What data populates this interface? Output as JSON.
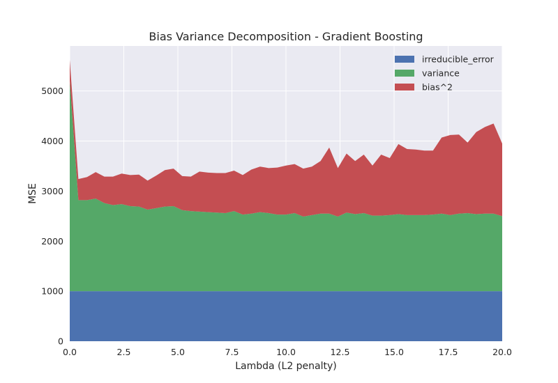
{
  "chart_data": {
    "type": "area",
    "stacked": true,
    "title": "Bias Variance Decomposition - Gradient Boosting",
    "xlabel": "Lambda (L2 penalty)",
    "ylabel": "MSE",
    "xlim": [
      0,
      20
    ],
    "ylim": [
      0,
      5900
    ],
    "xticks": [
      0,
      2.5,
      5,
      7.5,
      10,
      12.5,
      15,
      17.5,
      20
    ],
    "xtick_labels": [
      "0.0",
      "2.5",
      "5.0",
      "7.5",
      "10.0",
      "12.5",
      "15.0",
      "17.5",
      "20.0"
    ],
    "yticks": [
      0,
      1000,
      2000,
      3000,
      4000,
      5000
    ],
    "ytick_labels": [
      "0",
      "1000",
      "2000",
      "3000",
      "4000",
      "5000"
    ],
    "grid": true,
    "legend_position": "top-right",
    "x": [
      0,
      0.4,
      0.8,
      1.2,
      1.6,
      2.0,
      2.4,
      2.8,
      3.2,
      3.6,
      4.0,
      4.4,
      4.8,
      5.2,
      5.6,
      6.0,
      6.4,
      6.8,
      7.2,
      7.6,
      8.0,
      8.4,
      8.8,
      9.2,
      9.6,
      10.0,
      10.4,
      10.8,
      11.2,
      11.6,
      12.0,
      12.4,
      12.8,
      13.2,
      13.6,
      14.0,
      14.4,
      14.8,
      15.2,
      15.6,
      16.0,
      16.4,
      16.8,
      17.2,
      17.6,
      18.0,
      18.4,
      18.8,
      19.2,
      19.6,
      20.0
    ],
    "series": [
      {
        "name": "irreducible_error",
        "color": "#4c72b0",
        "values": [
          1000,
          1000,
          1000,
          1000,
          1000,
          1000,
          1000,
          1000,
          1000,
          1000,
          1000,
          1000,
          1000,
          1000,
          1000,
          1000,
          1000,
          1000,
          1000,
          1000,
          1000,
          1000,
          1000,
          1000,
          1000,
          1000,
          1000,
          1000,
          1000,
          1000,
          1000,
          1000,
          1000,
          1000,
          1000,
          1000,
          1000,
          1000,
          1000,
          1000,
          1000,
          1000,
          1000,
          1000,
          1000,
          1000,
          1000,
          1000,
          1000,
          1000,
          1000
        ]
      },
      {
        "name": "variance",
        "color": "#55a868",
        "values": [
          4200,
          1820,
          1820,
          1850,
          1760,
          1720,
          1740,
          1700,
          1690,
          1630,
          1660,
          1690,
          1700,
          1620,
          1600,
          1590,
          1580,
          1570,
          1560,
          1600,
          1530,
          1550,
          1580,
          1560,
          1530,
          1530,
          1560,
          1490,
          1520,
          1550,
          1550,
          1490,
          1570,
          1540,
          1560,
          1510,
          1510,
          1520,
          1540,
          1520,
          1520,
          1520,
          1530,
          1550,
          1520,
          1550,
          1560,
          1540,
          1550,
          1550,
          1500
        ]
      },
      {
        "name": "bias^2",
        "color": "#c44e52",
        "values": [
          420,
          420,
          460,
          530,
          530,
          570,
          610,
          620,
          640,
          580,
          650,
          730,
          750,
          680,
          690,
          800,
          790,
          790,
          800,
          810,
          790,
          880,
          910,
          900,
          940,
          980,
          980,
          960,
          970,
          1050,
          1320,
          970,
          1180,
          1060,
          1170,
          1000,
          1220,
          1140,
          1400,
          1320,
          1310,
          1290,
          1280,
          1520,
          1600,
          1580,
          1410,
          1640,
          1730,
          1800,
          1450
        ]
      }
    ]
  }
}
